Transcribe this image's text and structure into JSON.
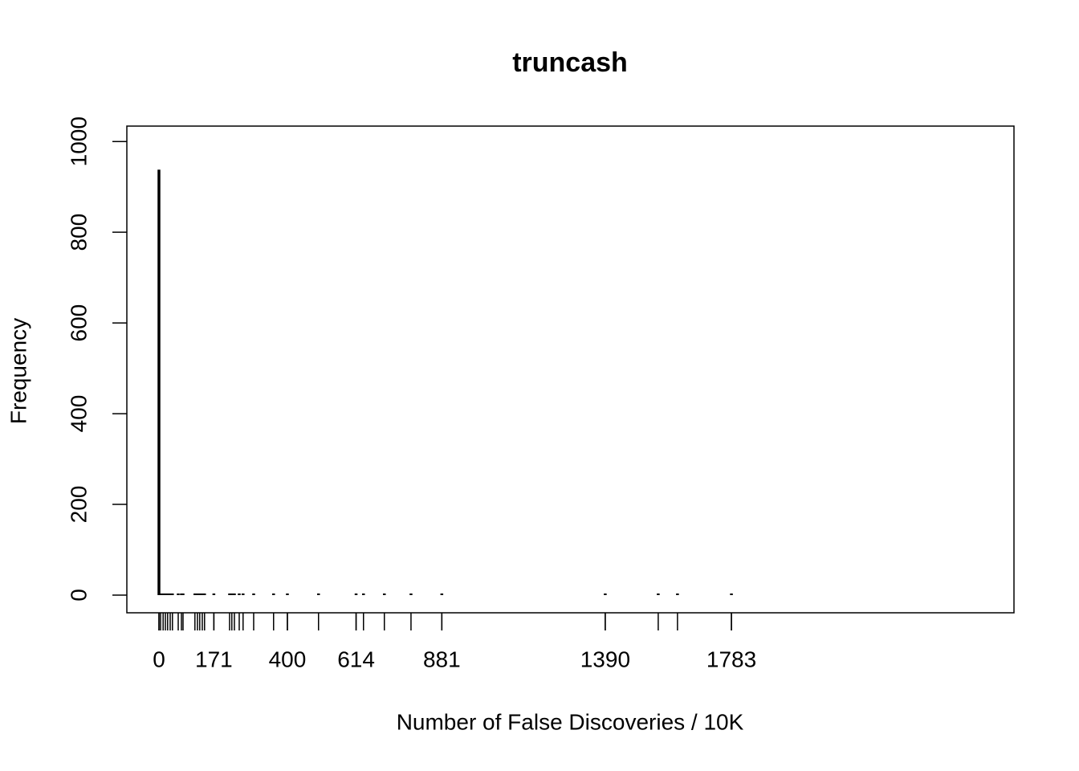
{
  "chart_data": {
    "type": "bar",
    "title": "truncash",
    "xlabel": "Number of False Discoveries / 10K",
    "ylabel": "Frequency",
    "x": [
      0,
      5,
      13,
      20,
      27,
      35,
      42,
      60,
      70,
      75,
      112,
      120,
      127,
      135,
      142,
      171,
      220,
      227,
      235,
      250,
      262,
      295,
      357,
      400,
      497,
      614,
      637,
      702,
      785,
      881,
      1390,
      1555,
      1615,
      1783
    ],
    "values": [
      938,
      1,
      1,
      1,
      1,
      1,
      1,
      1,
      1,
      1,
      1,
      1,
      1,
      1,
      1,
      1,
      1,
      1,
      1,
      1,
      1,
      1,
      1,
      1,
      1,
      1,
      1,
      1,
      1,
      1,
      1,
      1,
      1,
      1
    ],
    "color": "#000000",
    "xlim": [
      -100,
      2663
    ],
    "xticks": [
      0,
      171,
      400,
      614,
      881,
      1390,
      1783
    ],
    "ylim": [
      -39,
      1034
    ],
    "yticks": [
      0,
      200,
      400,
      600,
      800,
      1000
    ]
  }
}
